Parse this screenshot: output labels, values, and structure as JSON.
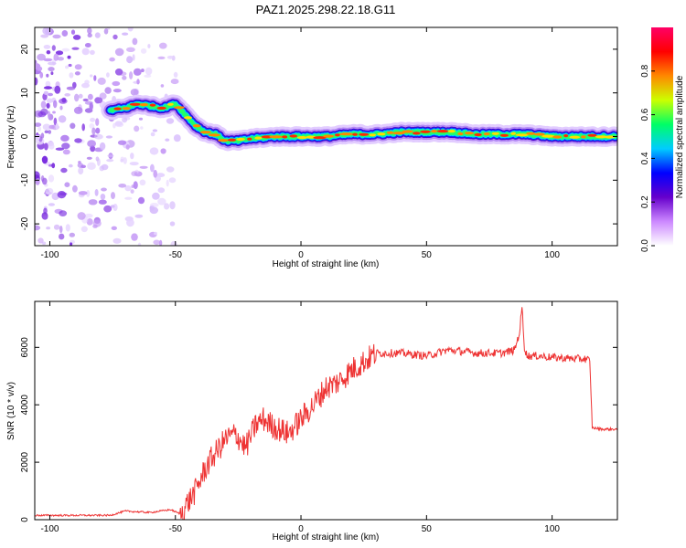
{
  "title": "PAZ1.2025.298.22.18.G11",
  "chart_data": [
    {
      "type": "heatmap",
      "xlabel": "Height of straight line (km)",
      "ylabel": "Frequency (Hz)",
      "xlim": [
        -106,
        126
      ],
      "ylim": [
        -25,
        25
      ],
      "x_ticks": [
        -100,
        -50,
        0,
        50,
        100
      ],
      "y_ticks": [
        -20,
        -10,
        0,
        10,
        20
      ],
      "colorbar": {
        "label": "Normalized spectral amplitude",
        "range": [
          0,
          1
        ],
        "ticks": [
          "0.0",
          "0.2",
          "0.4",
          "0.6",
          "0.8"
        ],
        "colormap": [
          "#ffffff",
          "#cc88ff",
          "#6600cc",
          "#0000ff",
          "#00ccff",
          "#00ff66",
          "#ccff00",
          "#ff8800",
          "#ff0000",
          "#ff0066"
        ]
      },
      "ridge": {
        "x": [
          -76,
          -70,
          -65,
          -60,
          -55,
          -50,
          -46,
          -42,
          -38,
          -34,
          -30,
          -25,
          -20,
          -10,
          0,
          10,
          20,
          30,
          40,
          50,
          60,
          70,
          80,
          90,
          100,
          110,
          120,
          126
        ],
        "freq": [
          6,
          6.5,
          7.5,
          7,
          6.5,
          7.5,
          5,
          2.5,
          1,
          0.5,
          -1,
          -1,
          -0.5,
          0,
          0,
          0,
          0.5,
          0.5,
          1,
          1,
          1,
          0.5,
          0.5,
          0.5,
          0,
          0,
          0,
          0
        ]
      },
      "noise_region_x": [
        -106,
        -49
      ]
    },
    {
      "type": "line",
      "xlabel": "Height of straight line (km)",
      "ylabel": "SNR (10 * v/v)",
      "xlim": [
        -106,
        126
      ],
      "ylim": [
        0,
        7600
      ],
      "x_ticks": [
        -100,
        -50,
        0,
        50,
        100
      ],
      "y_ticks": [
        0,
        2000,
        4000,
        6000
      ],
      "color": "#ee3333",
      "series": {
        "x": [
          -106,
          -90,
          -76,
          -70,
          -60,
          -52,
          -48,
          -45,
          -42,
          -38,
          -35,
          -30,
          -26,
          -22,
          -18,
          -15,
          -10,
          -5,
          0,
          5,
          10,
          15,
          20,
          25,
          30,
          35,
          40,
          50,
          58,
          60,
          70,
          80,
          85,
          87,
          88,
          89,
          90,
          95,
          100,
          110,
          114,
          115,
          116,
          120,
          126
        ],
        "y": [
          150,
          150,
          150,
          300,
          250,
          350,
          200,
          600,
          1000,
          1800,
          2200,
          2800,
          3000,
          2500,
          3300,
          3500,
          3200,
          3000,
          3500,
          4000,
          4600,
          4800,
          5200,
          5500,
          5800,
          5800,
          5800,
          5700,
          5900,
          5900,
          5800,
          5800,
          5900,
          6500,
          7400,
          6000,
          5700,
          5700,
          5650,
          5600,
          5600,
          5500,
          3200,
          3150,
          3150
        ]
      }
    }
  ]
}
